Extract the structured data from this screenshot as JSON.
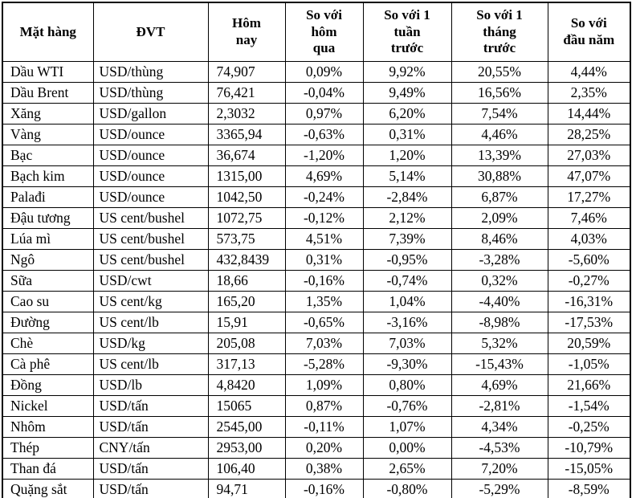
{
  "table": {
    "columns": [
      {
        "key": "name",
        "label": "Mặt hàng"
      },
      {
        "key": "unit",
        "label": "ĐVT"
      },
      {
        "key": "today",
        "label": "Hôm\nnay"
      },
      {
        "key": "vs_yesterday",
        "label": "So với\nhôm\nqua"
      },
      {
        "key": "vs_week",
        "label": "So với 1\ntuần\ntrước"
      },
      {
        "key": "vs_month",
        "label": "So với 1\ntháng\ntrước"
      },
      {
        "key": "vs_ytd",
        "label": "So với\nđầu năm"
      }
    ],
    "rows": [
      {
        "name": "Dầu WTI",
        "unit": "USD/thùng",
        "today": "74,907",
        "vs_yesterday": "0,09%",
        "vs_week": "9,92%",
        "vs_month": "20,55%",
        "vs_ytd": "4,44%"
      },
      {
        "name": "Dầu Brent",
        "unit": "USD/thùng",
        "today": "76,421",
        "vs_yesterday": "-0,04%",
        "vs_week": "9,49%",
        "vs_month": "16,56%",
        "vs_ytd": "2,35%"
      },
      {
        "name": "Xăng",
        "unit": "USD/gallon",
        "today": "2,3032",
        "vs_yesterday": "0,97%",
        "vs_week": "6,20%",
        "vs_month": "7,54%",
        "vs_ytd": "14,44%"
      },
      {
        "name": "Vàng",
        "unit": "USD/ounce",
        "today": "3365,94",
        "vs_yesterday": "-0,63%",
        "vs_week": "0,31%",
        "vs_month": "4,46%",
        "vs_ytd": "28,25%"
      },
      {
        "name": "Bạc",
        "unit": "USD/ounce",
        "today": "36,674",
        "vs_yesterday": "-1,20%",
        "vs_week": "1,20%",
        "vs_month": "13,39%",
        "vs_ytd": "27,03%"
      },
      {
        "name": "Bạch kim",
        "unit": "USD/ounce",
        "today": "1315,00",
        "vs_yesterday": "4,69%",
        "vs_week": "5,14%",
        "vs_month": "30,88%",
        "vs_ytd": "47,07%"
      },
      {
        "name": "Palađi",
        "unit": "USD/ounce",
        "today": "1042,50",
        "vs_yesterday": "-0,24%",
        "vs_week": "-2,84%",
        "vs_month": "6,87%",
        "vs_ytd": "17,27%"
      },
      {
        "name": "Đậu tương",
        "unit": "US cent/bushel",
        "today": "1072,75",
        "vs_yesterday": "-0,12%",
        "vs_week": "2,12%",
        "vs_month": "2,09%",
        "vs_ytd": "7,46%"
      },
      {
        "name": "Lúa mì",
        "unit": "US cent/bushel",
        "today": "573,75",
        "vs_yesterday": "4,51%",
        "vs_week": "7,39%",
        "vs_month": "8,46%",
        "vs_ytd": "4,03%"
      },
      {
        "name": "Ngô",
        "unit": "US cent/bushel",
        "today": "432,8439",
        "vs_yesterday": "0,31%",
        "vs_week": "-0,95%",
        "vs_month": "-3,28%",
        "vs_ytd": "-5,60%"
      },
      {
        "name": "Sữa",
        "unit": "USD/cwt",
        "today": "18,66",
        "vs_yesterday": "-0,16%",
        "vs_week": "-0,74%",
        "vs_month": "0,32%",
        "vs_ytd": "-0,27%"
      },
      {
        "name": "Cao su",
        "unit": "US cent/kg",
        "today": "165,20",
        "vs_yesterday": "1,35%",
        "vs_week": "1,04%",
        "vs_month": "-4,40%",
        "vs_ytd": "-16,31%"
      },
      {
        "name": "Đường",
        "unit": "US cent/lb",
        "today": "15,91",
        "vs_yesterday": "-0,65%",
        "vs_week": "-3,16%",
        "vs_month": "-8,98%",
        "vs_ytd": "-17,53%"
      },
      {
        "name": "Chè",
        "unit": "USD/kg",
        "today": "205,08",
        "vs_yesterday": "7,03%",
        "vs_week": "7,03%",
        "vs_month": "5,32%",
        "vs_ytd": "20,59%"
      },
      {
        "name": "Cà phê",
        "unit": "US cent/lb",
        "today": "317,13",
        "vs_yesterday": "-5,28%",
        "vs_week": "-9,30%",
        "vs_month": "-15,43%",
        "vs_ytd": "-1,05%"
      },
      {
        "name": "Đồng",
        "unit": "USD/lb",
        "today": "4,8420",
        "vs_yesterday": "1,09%",
        "vs_week": "0,80%",
        "vs_month": "4,69%",
        "vs_ytd": "21,66%"
      },
      {
        "name": "Nickel",
        "unit": "USD/tấn",
        "today": "15065",
        "vs_yesterday": "0,87%",
        "vs_week": "-0,76%",
        "vs_month": "-2,81%",
        "vs_ytd": "-1,54%"
      },
      {
        "name": "Nhôm",
        "unit": "USD/tấn",
        "today": "2545,00",
        "vs_yesterday": "-0,11%",
        "vs_week": "1,07%",
        "vs_month": "4,34%",
        "vs_ytd": "-0,25%"
      },
      {
        "name": "Thép",
        "unit": "CNY/tấn",
        "today": "2953,00",
        "vs_yesterday": "0,20%",
        "vs_week": "0,00%",
        "vs_month": "-4,53%",
        "vs_ytd": "-10,79%"
      },
      {
        "name": "Than đá",
        "unit": "USD/tấn",
        "today": "106,40",
        "vs_yesterday": "0,38%",
        "vs_week": "2,65%",
        "vs_month": "7,20%",
        "vs_ytd": "-15,05%"
      },
      {
        "name": "Quặng sắt",
        "unit": "USD/tấn",
        "today": "94,71",
        "vs_yesterday": "-0,16%",
        "vs_week": "-0,80%",
        "vs_month": "-5,29%",
        "vs_ytd": "-8,59%"
      }
    ]
  },
  "colors": {
    "border": "#000000",
    "text": "#000000",
    "background": "#ffffff"
  }
}
